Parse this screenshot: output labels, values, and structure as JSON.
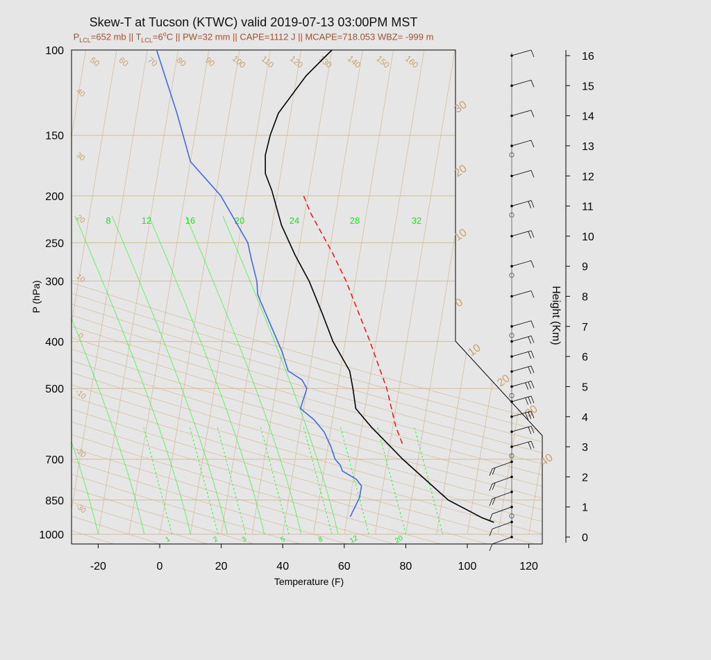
{
  "header": {
    "title": "Skew-T at Tucson (KTWC) valid 2019-07-13 03:00PM MST",
    "subtitle": {
      "plcl_prefix": "P",
      "plcl_sub": "LCL",
      "plcl_value": "=652 mb",
      "tlcl_sep": " || T",
      "tlcl_sub": "LCL",
      "tlcl_value": "=6",
      "deg_sup": "o",
      "rest": "C || PW=32 mm || CAPE=1112 J || MCAPE=718.053 WBZ= -999 m"
    }
  },
  "colors": {
    "temperature": "#000000",
    "dewpoint": "#4169e1",
    "parcel": "#ff0000",
    "isotherm": "#d2b48c",
    "mixing_ratio": "#00ff00",
    "frame": "#000000",
    "background": "#e6e6e6"
  },
  "chart_data": {
    "type": "line",
    "title": "Skew-T at Tucson (KTWC) valid 2019-07-13 03:00PM MST",
    "xlabel": "Temperature (F)",
    "ylabel": "P (hPa)",
    "right_axis_label": "Height (Km)",
    "xlim": [
      -28,
      125
    ],
    "ylim": [
      1000,
      100
    ],
    "y_scale": "log",
    "x_ticks": [
      "-20",
      "0",
      "20",
      "40",
      "60",
      "80",
      "100",
      "120"
    ],
    "x_tick_values": [
      -20,
      0,
      20,
      40,
      60,
      80,
      100,
      120
    ],
    "y_ticks": [
      "100",
      "150",
      "200",
      "250",
      "300",
      "400",
      "500",
      "700",
      "850",
      "1000"
    ],
    "y_tick_values": [
      100,
      150,
      200,
      250,
      300,
      400,
      500,
      700,
      850,
      1000
    ],
    "height_ticks": [
      "0",
      "1",
      "2",
      "3",
      "4",
      "5",
      "6",
      "7",
      "8",
      "9",
      "10",
      "11",
      "12",
      "13",
      "14",
      "15",
      "16"
    ],
    "height_tick_values": [
      0,
      1,
      2,
      3,
      4,
      5,
      6,
      7,
      8,
      9,
      10,
      11,
      12,
      13,
      14,
      15,
      16
    ],
    "skewed_isotherm_labels": {
      "top": [
        "50",
        "60",
        "70",
        "80",
        "90",
        "100",
        "110",
        "120",
        "130",
        "140",
        "150",
        "160"
      ],
      "left": [
        "40",
        "30",
        "20",
        "10",
        "0",
        "-10",
        "-20",
        "-30"
      ],
      "right": [
        "30",
        "20",
        "10",
        "0",
        "10",
        "20",
        "30",
        "40"
      ]
    },
    "mixing_ratio_labels_top": [
      "8",
      "12",
      "16",
      "20",
      "24",
      "28",
      "32"
    ],
    "mixing_ratio_labels_bottom": [
      "1",
      "2",
      "3",
      "5",
      "8",
      "12",
      "20"
    ],
    "series": [
      {
        "name": "",
        "style": "solid",
        "color": "#000000",
        "points": [
          [
            108,
            945
          ],
          [
            104,
            925
          ],
          [
            92,
            850
          ],
          [
            81,
            750
          ],
          [
            75,
            700
          ],
          [
            63,
            600
          ],
          [
            57,
            550
          ],
          [
            55,
            500
          ],
          [
            53,
            460
          ],
          [
            46,
            400
          ],
          [
            41,
            350
          ],
          [
            35,
            300
          ],
          [
            29,
            265
          ],
          [
            23,
            230
          ],
          [
            18,
            195
          ],
          [
            15,
            180
          ],
          [
            14,
            165
          ],
          [
            14.5,
            150
          ],
          [
            16,
            135
          ],
          [
            23,
            113
          ],
          [
            30,
            100
          ]
        ]
      },
      {
        "name": "",
        "style": "solid",
        "color": "#4169e1",
        "points": [
          [
            61,
            920
          ],
          [
            63,
            840
          ],
          [
            63,
            795
          ],
          [
            61,
            770
          ],
          [
            56,
            740
          ],
          [
            55,
            720
          ],
          [
            53,
            700
          ],
          [
            51,
            660
          ],
          [
            49,
            630
          ],
          [
            48,
            615
          ],
          [
            44,
            580
          ],
          [
            39,
            550
          ],
          [
            40,
            500
          ],
          [
            38,
            480
          ],
          [
            33,
            460
          ],
          [
            30,
            420
          ],
          [
            27,
            390
          ],
          [
            19,
            320
          ],
          [
            18,
            300
          ],
          [
            15,
            270
          ],
          [
            13,
            250
          ],
          [
            1.7,
            200
          ],
          [
            1,
            198
          ],
          [
            -10,
            170
          ],
          [
            -17,
            135
          ],
          [
            -27,
            100
          ]
        ]
      },
      {
        "name": "",
        "style": "dashed",
        "color": "#ff0000",
        "points": [
          [
            74,
            650
          ],
          [
            71,
            600
          ],
          [
            66,
            500
          ],
          [
            58,
            400
          ],
          [
            47,
            300
          ],
          [
            41,
            262
          ],
          [
            32,
            218
          ],
          [
            28,
            197
          ]
        ]
      }
    ],
    "wind_profile": {
      "heights_km": [
        0,
        0.5,
        1,
        1.5,
        2,
        2.5,
        3,
        3.5,
        4,
        4.5,
        5,
        5.5,
        6,
        6.5,
        7,
        8,
        9,
        10,
        11,
        12,
        13,
        14,
        15,
        16
      ],
      "speeds_kt": [
        5,
        5,
        10,
        15,
        15,
        15,
        20,
        20,
        25,
        25,
        30,
        20,
        15,
        15,
        10,
        10,
        10,
        15,
        15,
        10,
        10,
        10,
        5,
        5
      ]
    }
  }
}
